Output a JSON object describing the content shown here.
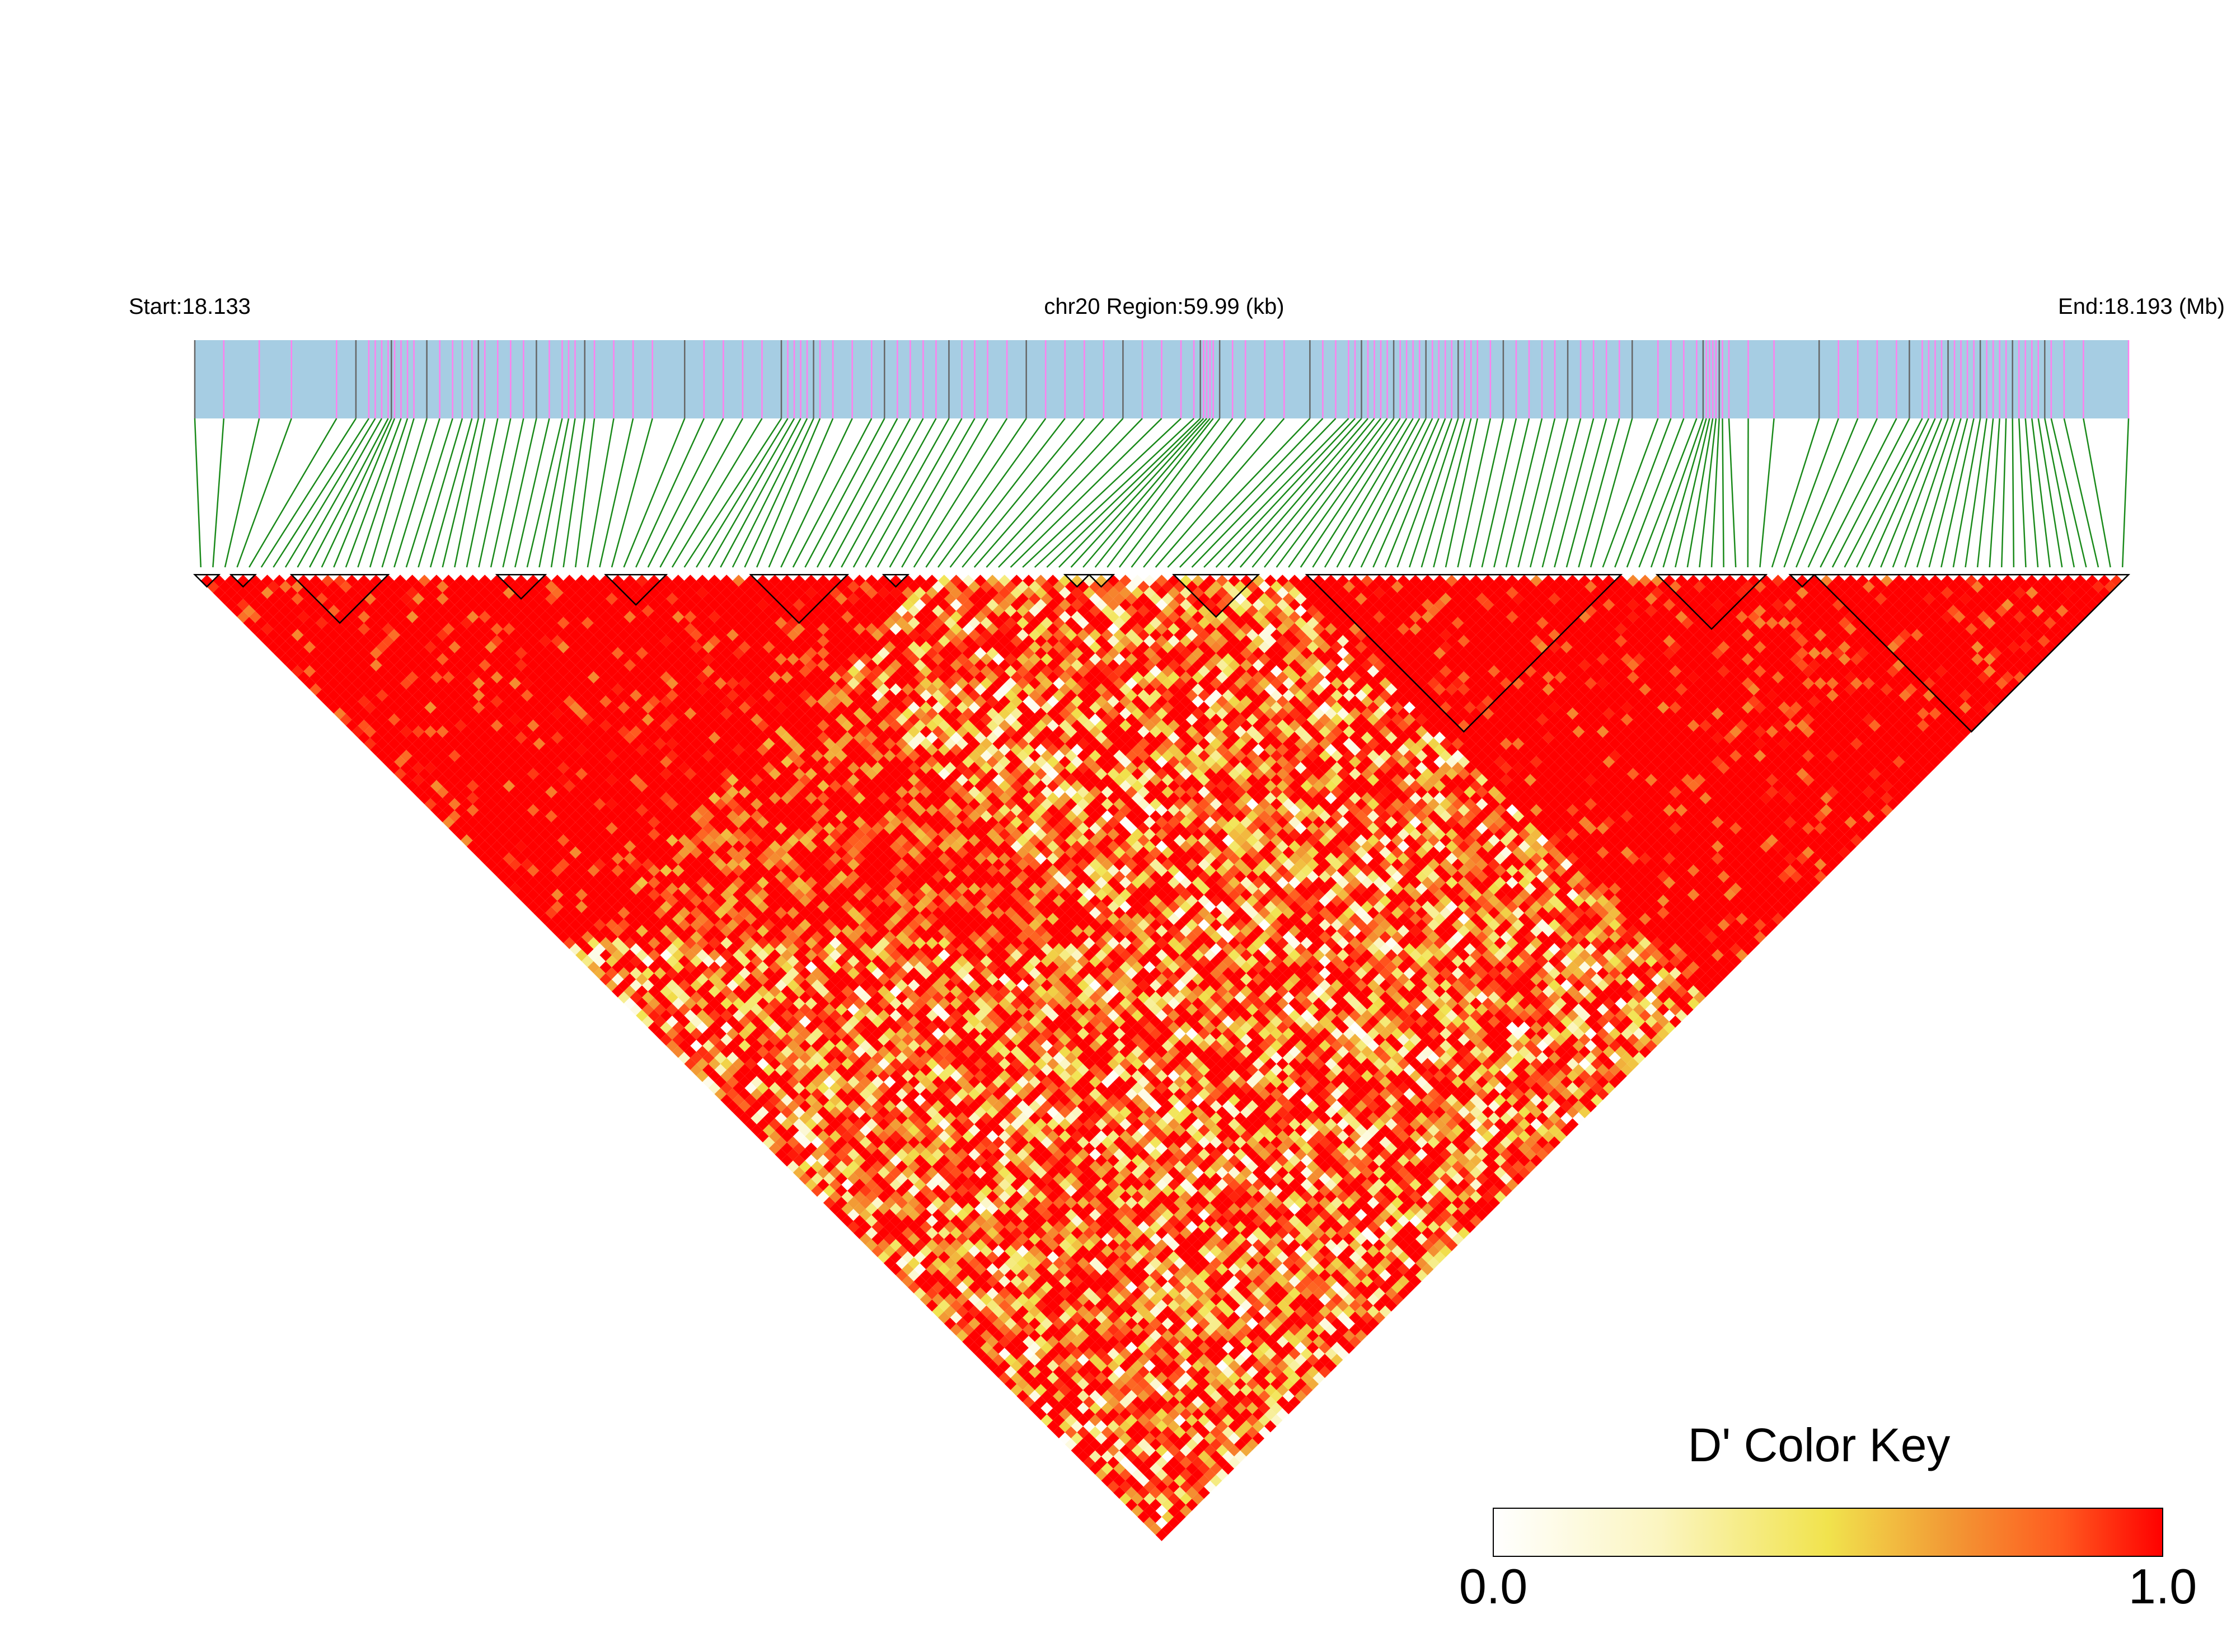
{
  "header": {
    "start_label": "Start:18.133",
    "region_label": "chr20 Region:59.99 (kb)",
    "end_label": "End:18.193 (Mb)"
  },
  "color_key": {
    "title": "D' Color Key",
    "min_label": "0.0",
    "max_label": "1.0",
    "gradient": [
      "#ffffff",
      "#fbf5c0",
      "#f1e34d",
      "#f29a35",
      "#ff5a1f",
      "#ff0000"
    ]
  },
  "colors": {
    "track_fill": "#a6cde3",
    "snp_tick_common": "#ff80ee",
    "snp_tick_rare": "#666666",
    "connector": "#1a8a1a",
    "block_outline": "#000000"
  },
  "chart_data": {
    "type": "heatmap",
    "title": "",
    "chromosome": "chr20",
    "region_start_mb": 18.133,
    "region_end_mb": 18.193,
    "region_kb": 59.99,
    "n_snps": 160,
    "value_name": "D'",
    "value_range": [
      0.0,
      1.0
    ],
    "snp_positions_mb": [
      18.133,
      18.1339,
      18.135,
      18.136,
      18.1374,
      18.138,
      18.1384,
      18.1386,
      18.1388,
      18.139,
      18.1391,
      18.1392,
      18.1394,
      18.1396,
      18.1398,
      18.1402,
      18.1406,
      18.141,
      18.1413,
      18.1416,
      18.1418,
      18.142,
      18.1424,
      18.1428,
      18.1432,
      18.1436,
      18.144,
      18.1444,
      18.1446,
      18.1448,
      18.1451,
      18.1454,
      18.146,
      18.1466,
      18.1472,
      18.1482,
      18.1488,
      18.1494,
      18.15,
      18.1506,
      18.1512,
      18.1514,
      18.1516,
      18.1518,
      18.152,
      18.1522,
      18.1524,
      18.1528,
      18.1534,
      18.154,
      18.1544,
      18.1548,
      18.1552,
      18.1556,
      18.156,
      18.1564,
      18.1568,
      18.1572,
      18.1576,
      18.1582,
      18.1588,
      18.1594,
      18.16,
      18.1606,
      18.1612,
      18.1618,
      18.1624,
      18.163,
      18.1636,
      18.164,
      18.1642,
      18.1643,
      18.1644,
      18.1645,
      18.1646,
      18.1648,
      18.1652,
      18.1656,
      18.1662,
      18.1668,
      18.1676,
      18.168,
      18.1684,
      18.1688,
      18.169,
      18.1692,
      18.1694,
      18.1696,
      18.1698,
      18.17,
      18.1702,
      18.1704,
      18.1706,
      18.1708,
      18.171,
      18.1712,
      18.1714,
      18.1716,
      18.1718,
      18.172,
      18.1722,
      18.1724,
      18.1726,
      18.1728,
      18.1732,
      18.1736,
      18.174,
      18.1744,
      18.1748,
      18.1752,
      18.1756,
      18.176,
      18.1764,
      18.1768,
      18.1772,
      18.1776,
      18.1784,
      18.1788,
      18.1792,
      18.1796,
      18.1798,
      18.1799,
      18.18,
      18.1801,
      18.1802,
      18.1803,
      18.1804,
      18.1806,
      18.1812,
      18.182,
      18.1834,
      18.184,
      18.1846,
      18.1852,
      18.1858,
      18.1862,
      18.1866,
      18.1868,
      18.187,
      18.1872,
      18.1874,
      18.1876,
      18.1878,
      18.188,
      18.1882,
      18.1884,
      18.1886,
      18.1888,
      18.189,
      18.1892,
      18.1894,
      18.1896,
      18.1898,
      18.19,
      18.1902,
      18.1904,
      18.1906,
      18.191,
      18.1916,
      18.193
    ],
    "haplotype_blocks": [
      {
        "first_snp": 0,
        "last_snp": 1
      },
      {
        "first_snp": 3,
        "last_snp": 4
      },
      {
        "first_snp": 8,
        "last_snp": 15
      },
      {
        "first_snp": 25,
        "last_snp": 28
      },
      {
        "first_snp": 34,
        "last_snp": 38
      },
      {
        "first_snp": 46,
        "last_snp": 53
      },
      {
        "first_snp": 57,
        "last_snp": 58
      },
      {
        "first_snp": 72,
        "last_snp": 73
      },
      {
        "first_snp": 74,
        "last_snp": 75
      },
      {
        "first_snp": 81,
        "last_snp": 87
      },
      {
        "first_snp": 92,
        "last_snp": 117
      },
      {
        "first_snp": 121,
        "last_snp": 129
      },
      {
        "first_snp": 132,
        "last_snp": 133
      },
      {
        "first_snp": 134,
        "last_snp": 159
      }
    ],
    "dprime": {
      "base_level": 0.88,
      "high_ld_regions": [
        {
          "snp_from": 0,
          "snp_to": 60,
          "value": 0.98
        },
        {
          "snp_from": 90,
          "snp_to": 159,
          "value": 0.98
        }
      ],
      "low_ld_center_band": {
        "snp_from": 45,
        "snp_to": 110,
        "value": 0.55
      },
      "sampling": "cell values around these levels; exact per-pair values not printed"
    },
    "legend_position": "bottom-right"
  }
}
